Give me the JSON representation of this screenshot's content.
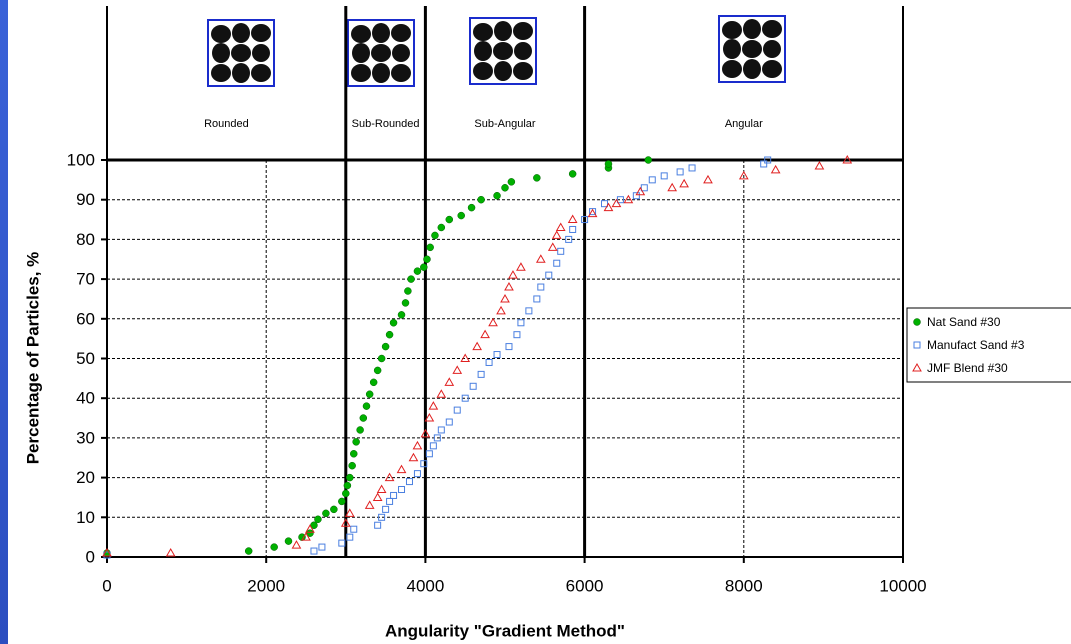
{
  "chart_data": {
    "type": "scatter",
    "x_label": "Angularity \"Gradient Method\"",
    "y_label": "Percentage of Particles, %",
    "xlim": [
      0,
      10000
    ],
    "xticks": [
      0,
      2000,
      4000,
      6000,
      8000,
      10000
    ],
    "ylim": [
      0,
      100
    ],
    "yticks": [
      0,
      10,
      20,
      30,
      40,
      50,
      60,
      70,
      80,
      90,
      100
    ],
    "grid": true,
    "legend": "right",
    "boundaries": [
      3000,
      4000,
      6000
    ],
    "region_labels": [
      "Rounded",
      "Sub-Rounded",
      "Sub-Angular",
      "Angular"
    ],
    "series": [
      {
        "name": "Nat Sand #30",
        "color": "#00b000",
        "marker": "circle",
        "x": [
          0,
          1780,
          2100,
          2280,
          2450,
          2550,
          2600,
          2650,
          2750,
          2850,
          2950,
          3000,
          3020,
          3050,
          3080,
          3100,
          3130,
          3180,
          3220,
          3260,
          3300,
          3350,
          3400,
          3450,
          3500,
          3550,
          3600,
          3700,
          3750,
          3780,
          3820,
          3900,
          3980,
          4020,
          4060,
          4120,
          4200,
          4300,
          4450,
          4580,
          4700,
          4900,
          5000,
          5080,
          5400,
          5850,
          6300,
          6300,
          6800
        ],
        "y": [
          1,
          1.5,
          2.5,
          4,
          5,
          6,
          8,
          9.5,
          11,
          12,
          14,
          16,
          18,
          20,
          23,
          26,
          29,
          32,
          35,
          38,
          41,
          44,
          47,
          50,
          53,
          56,
          59,
          61,
          64,
          67,
          70,
          72,
          73,
          75,
          78,
          81,
          83,
          85,
          86,
          88,
          90,
          91,
          93,
          94.5,
          95.5,
          96.5,
          98,
          99,
          100
        ]
      },
      {
        "name": "Manufact Sand #3",
        "color": "#4a7fe0",
        "marker": "square",
        "x": [
          0,
          2600,
          2700,
          2950,
          3050,
          3100,
          3400,
          3450,
          3500,
          3550,
          3600,
          3700,
          3800,
          3900,
          3980,
          4050,
          4100,
          4150,
          4200,
          4300,
          4400,
          4500,
          4600,
          4700,
          4800,
          4900,
          5050,
          5150,
          5200,
          5300,
          5400,
          5450,
          5550,
          5650,
          5700,
          5800,
          5850,
          6000,
          6100,
          6250,
          6450,
          6650,
          6750,
          6850,
          7000,
          7200,
          7350,
          8250,
          8300
        ],
        "y": [
          0.5,
          1.5,
          2.5,
          3.5,
          5,
          7,
          8,
          10,
          12,
          14,
          15.5,
          17,
          19,
          21,
          23.5,
          26,
          28,
          30,
          32,
          34,
          37,
          40,
          43,
          46,
          49,
          51,
          53,
          56,
          59,
          62,
          65,
          68,
          71,
          74,
          77,
          80,
          82.5,
          85,
          87,
          89,
          90,
          91,
          93,
          95,
          96,
          97,
          98,
          99,
          100
        ]
      },
      {
        "name": "JMF Blend #30",
        "color": "#e02020",
        "marker": "triangle",
        "x": [
          0,
          800,
          2380,
          2500,
          2550,
          3000,
          3050,
          3300,
          3400,
          3450,
          3550,
          3700,
          3850,
          3900,
          4000,
          4050,
          4100,
          4200,
          4300,
          4400,
          4500,
          4650,
          4750,
          4850,
          4950,
          5000,
          5050,
          5100,
          5200,
          5450,
          5600,
          5650,
          5700,
          5850,
          6100,
          6300,
          6400,
          6550,
          6700,
          7100,
          7250,
          7550,
          8000,
          8400,
          8950,
          9300
        ],
        "y": [
          1,
          1,
          3,
          5,
          7,
          8.5,
          11,
          13,
          15,
          17,
          20,
          22,
          25,
          28,
          31,
          35,
          38,
          41,
          44,
          47,
          50,
          53,
          56,
          59,
          62,
          65,
          68,
          71,
          73,
          75,
          78,
          81,
          83,
          85,
          86.5,
          88,
          89,
          90,
          92,
          93,
          94,
          95,
          96,
          97.5,
          98.5,
          100
        ]
      }
    ]
  }
}
